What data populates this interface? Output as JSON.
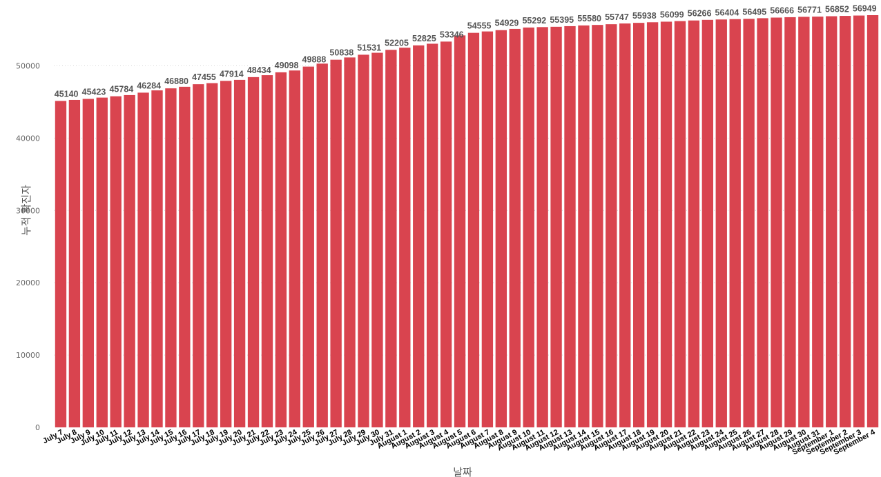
{
  "chart_data": {
    "type": "bar",
    "xlabel": "날짜",
    "ylabel": "누적 확진자",
    "ylim": [
      0,
      57000
    ],
    "yticks": [
      0,
      10000,
      20000,
      30000,
      40000,
      50000
    ],
    "grid": true,
    "bar_color": "#d9444f",
    "categories": [
      "July 7",
      "July 8",
      "July 9",
      "July 10",
      "July 11",
      "July 12",
      "July 13",
      "July 14",
      "July 15",
      "July 16",
      "July 17",
      "July 18",
      "July 19",
      "July 20",
      "July 21",
      "July 22",
      "July 23",
      "July 24",
      "July 25",
      "July 26",
      "July 27",
      "July 28",
      "July 29",
      "July 30",
      "July 31",
      "August 1",
      "August 2",
      "August 3",
      "August 4",
      "August 5",
      "August 6",
      "August 7",
      "August 8",
      "August 9",
      "August 10",
      "August 11",
      "August 12",
      "August 13",
      "August 14",
      "August 15",
      "August 16",
      "August 17",
      "August 18",
      "August 19",
      "August 20",
      "August 21",
      "August 22",
      "August 23",
      "August 24",
      "August 25",
      "August 26",
      "August 27",
      "August 28",
      "August 29",
      "August 30",
      "August 31",
      "September 1",
      "September 2",
      "September 3",
      "September 4"
    ],
    "values": [
      45140,
      45280,
      45423,
      45600,
      45784,
      45950,
      46284,
      46600,
      46880,
      47100,
      47455,
      47600,
      47914,
      48050,
      48434,
      48700,
      49098,
      49350,
      49888,
      50300,
      50838,
      51150,
      51531,
      51800,
      52205,
      52500,
      52825,
      53050,
      53346,
      54200,
      54555,
      54750,
      54929,
      55100,
      55292,
      55350,
      55395,
      55480,
      55580,
      55650,
      55747,
      55850,
      55938,
      56020,
      56099,
      56180,
      56266,
      56350,
      56404,
      56450,
      56495,
      56580,
      56666,
      56720,
      56771,
      56800,
      56852,
      56900,
      56949,
      57000
    ],
    "data_labels": [
      "45140",
      "",
      "45423",
      "",
      "45784",
      "",
      "46284",
      "",
      "46880",
      "",
      "47455",
      "",
      "47914",
      "",
      "48434",
      "",
      "49098",
      "",
      "49888",
      "",
      "50838",
      "",
      "51531",
      "",
      "52205",
      "",
      "52825",
      "",
      "53346",
      "",
      "54555",
      "",
      "54929",
      "",
      "55292",
      "",
      "55395",
      "",
      "55580",
      "",
      "55747",
      "",
      "55938",
      "",
      "56099",
      "",
      "56266",
      "",
      "56404",
      "",
      "56495",
      "",
      "56666",
      "",
      "56771",
      "",
      "56852",
      "",
      "56949",
      ""
    ]
  }
}
